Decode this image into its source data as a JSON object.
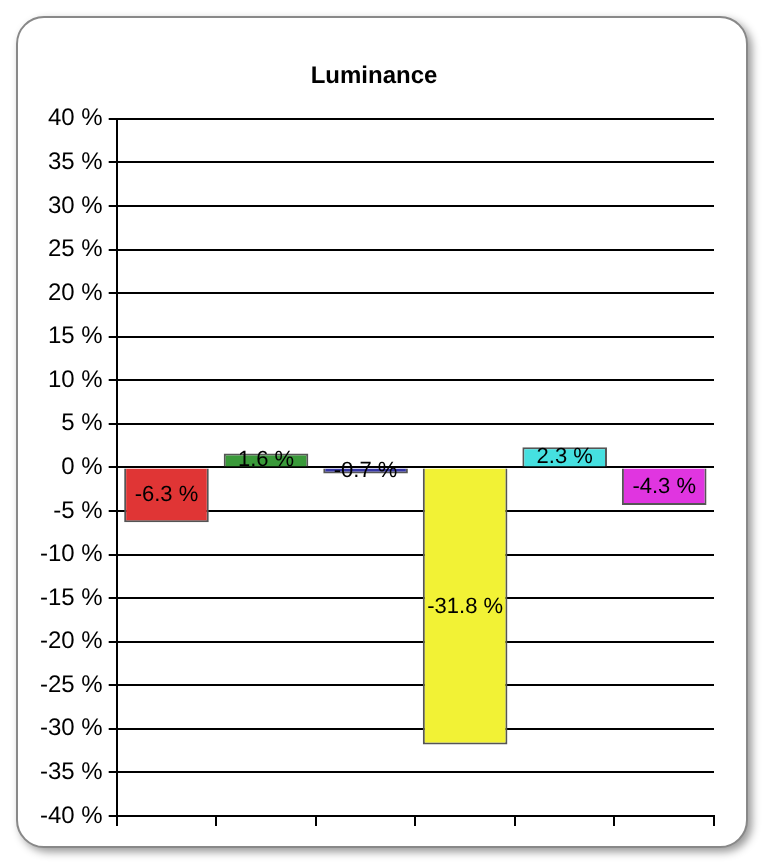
{
  "chart_data": {
    "type": "bar",
    "title": "Luminance",
    "categories": [
      null,
      null,
      null,
      null,
      null,
      null
    ],
    "values": [
      -6.3,
      1.6,
      -0.7,
      -31.8,
      2.3,
      -4.3
    ],
    "colors": [
      "#e03535",
      "#3a9a3a",
      "#3535a5",
      "#f2f235",
      "#45e0e0",
      "#e035e0"
    ],
    "value_labels": [
      "-6.3 %",
      "1.6 %",
      "-0.7 %",
      "-31.8 %",
      "2.3 %",
      "-4.3 %"
    ],
    "ylim": [
      -40,
      40
    ],
    "yticks": [
      {
        "value": -40,
        "label": "-40 %"
      },
      {
        "value": -35,
        "label": "-35 %"
      },
      {
        "value": -30,
        "label": "-30 %"
      },
      {
        "value": -25,
        "label": "-25 %"
      },
      {
        "value": -20,
        "label": "-20 %"
      },
      {
        "value": -15,
        "label": "-15 %"
      },
      {
        "value": -10,
        "label": "-10 %"
      },
      {
        "value": -5,
        "label": "-5 %"
      },
      {
        "value": 0,
        "label": "0 %"
      },
      {
        "value": 5,
        "label": "5 %"
      },
      {
        "value": 10,
        "label": "10 %"
      },
      {
        "value": 15,
        "label": "15 %"
      },
      {
        "value": 20,
        "label": "20 %"
      },
      {
        "value": 25,
        "label": "25 %"
      },
      {
        "value": 30,
        "label": "30 %"
      },
      {
        "value": 35,
        "label": "35 %"
      },
      {
        "value": 40,
        "label": "40 %"
      }
    ],
    "grid": "y",
    "tick_labels": "y"
  }
}
